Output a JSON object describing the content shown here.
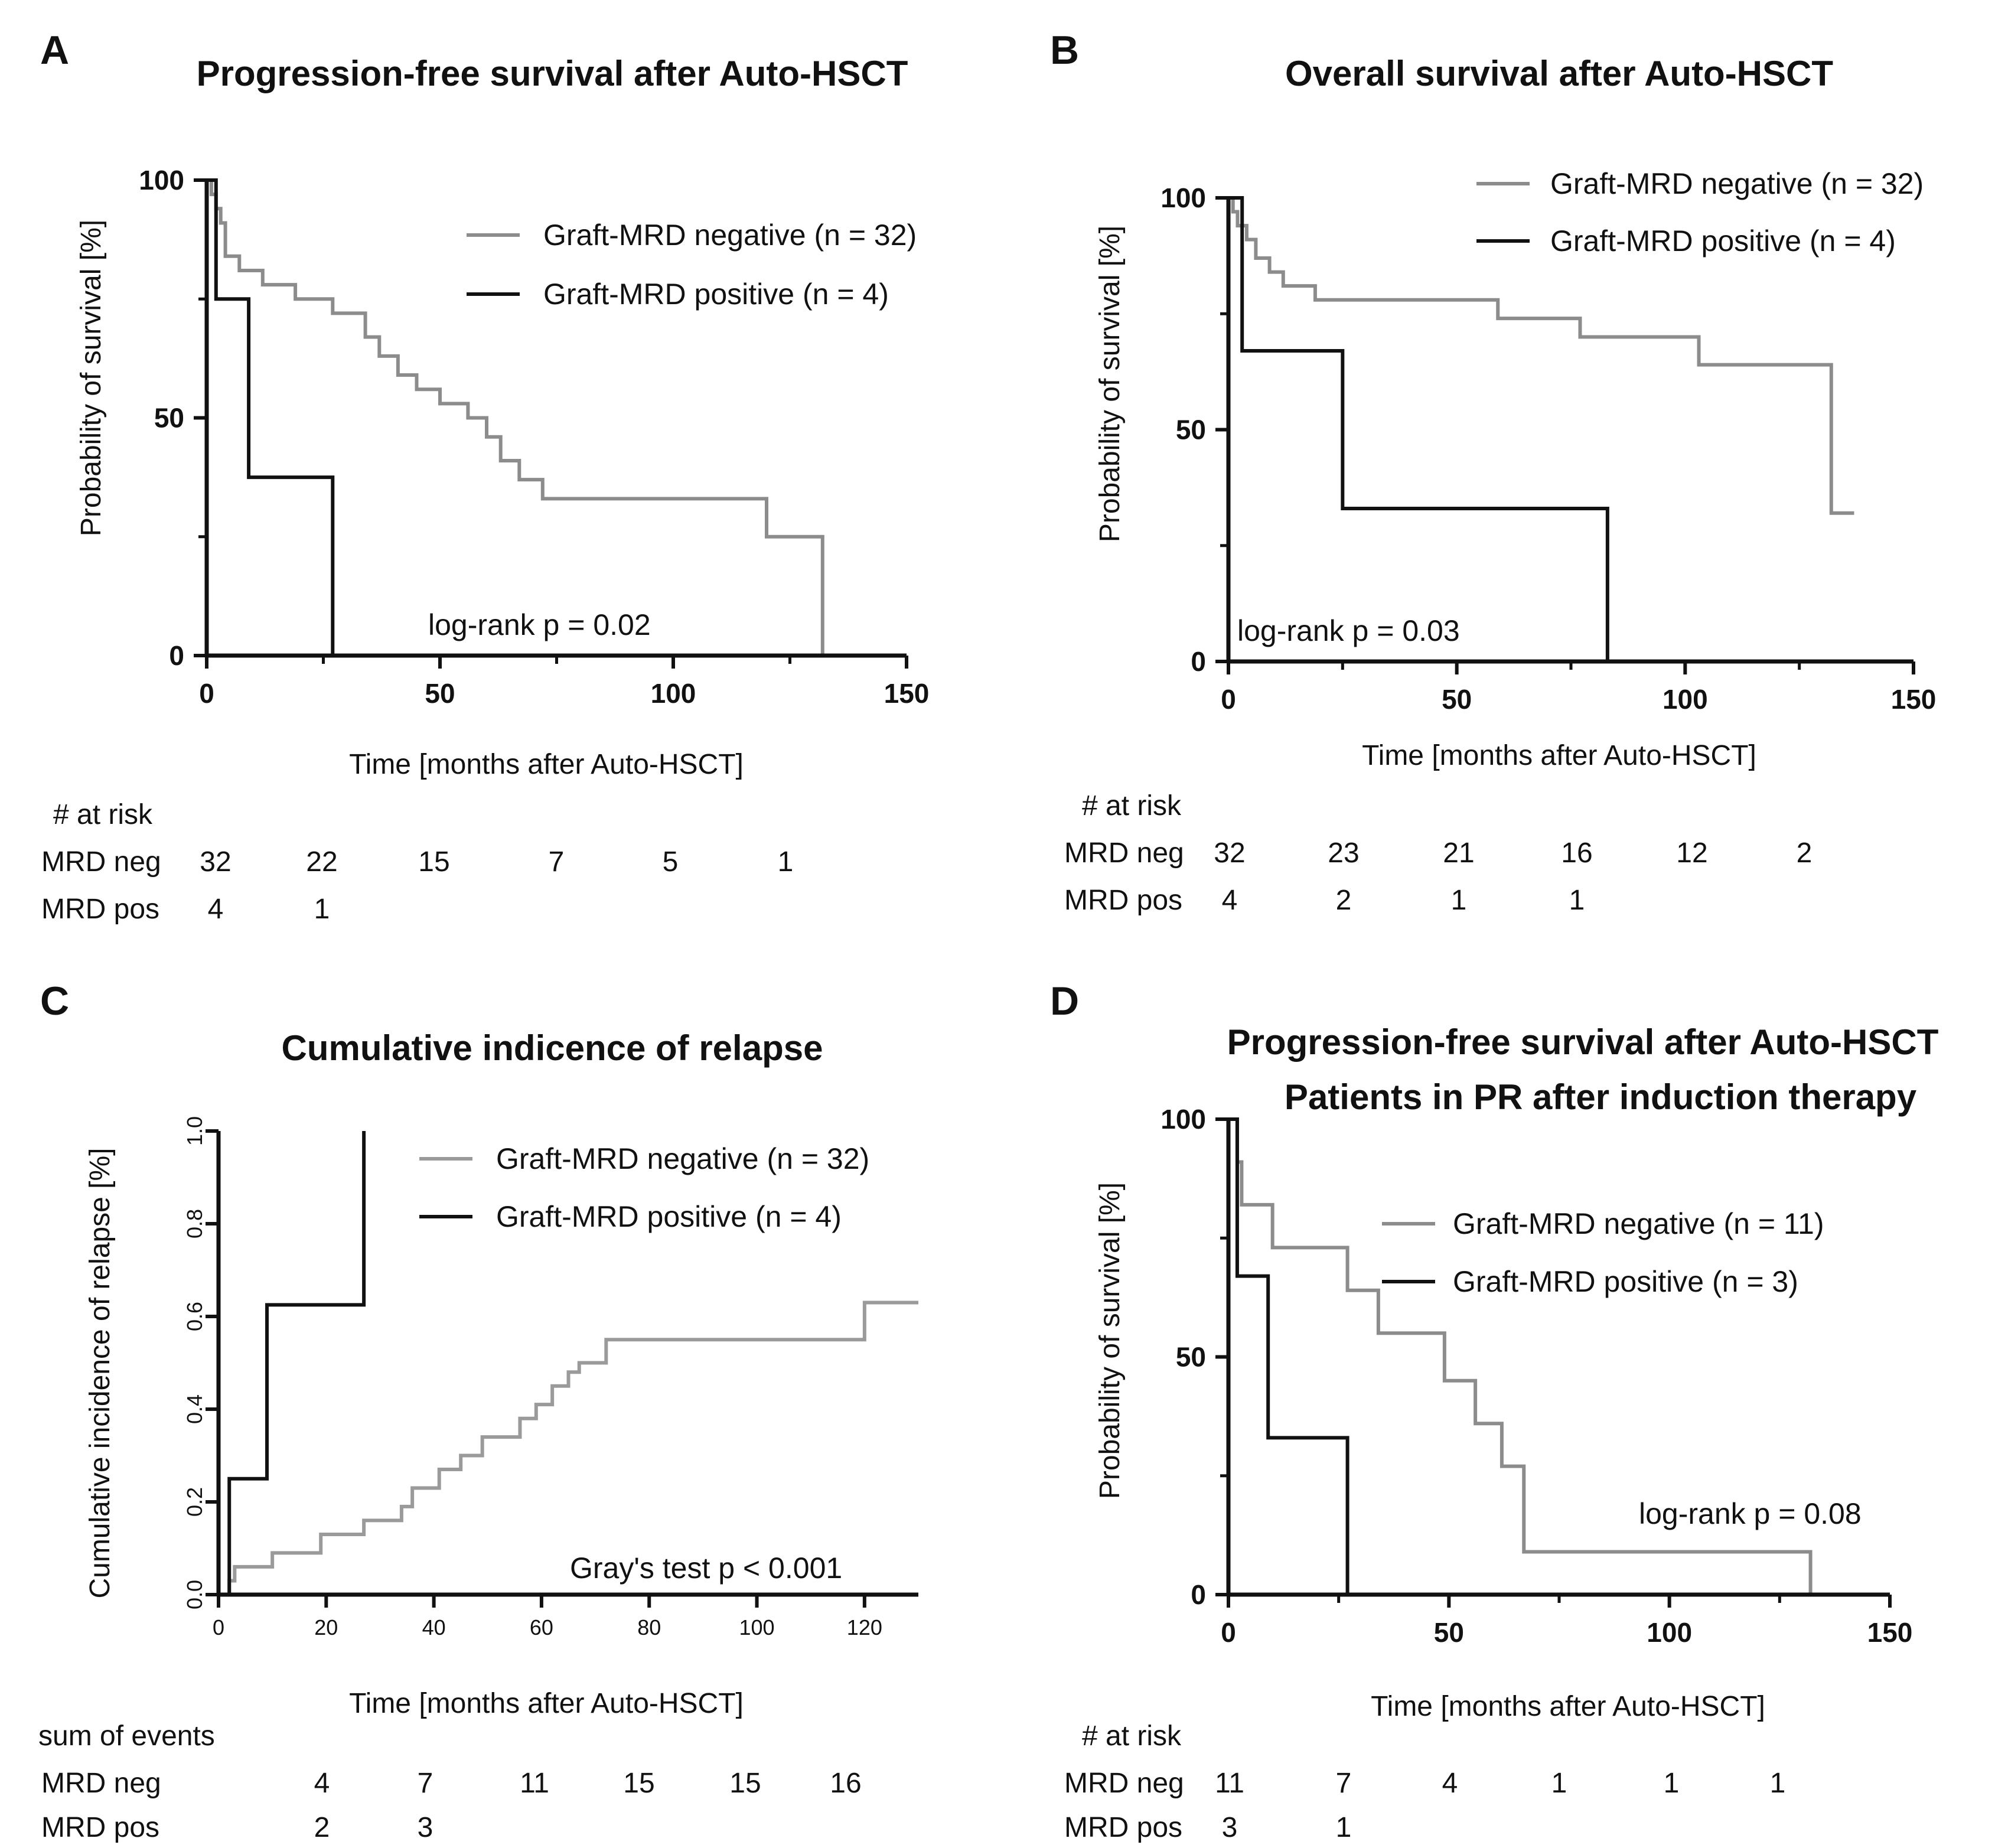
{
  "chart_data": [
    {
      "panel": "A",
      "type": "line",
      "subtype": "kaplan-meier",
      "title": "Progression-free survival after Auto-HSCT",
      "subtitle": "",
      "xlabel": "Time [months after Auto-HSCT]",
      "ylabel": "Probability of survival [%]",
      "xlim": [
        0,
        150
      ],
      "ylim": [
        0,
        100
      ],
      "xticks": [
        0,
        50,
        100,
        150
      ],
      "yticks": [
        0,
        50,
        100
      ],
      "xtick_labels": [
        "0",
        "50",
        "100",
        "150"
      ],
      "ytick_labels": [
        "0",
        "50",
        "100"
      ],
      "legend": [
        "Graft-MRD negative (n = 32)",
        "Graft-MRD positive (n = 4)"
      ],
      "stat": "log-rank p = 0.02",
      "series": [
        {
          "name": "Graft-MRD negative (n = 32)",
          "color": "#8c8c8c",
          "x": [
            0,
            1,
            2,
            3,
            4,
            7,
            12,
            19,
            27,
            34,
            37,
            41,
            45,
            50,
            56,
            60,
            63,
            67,
            72,
            120,
            132
          ],
          "y": [
            100,
            97,
            94,
            91,
            84,
            81,
            78,
            75,
            72,
            67,
            63,
            59,
            56,
            53,
            50,
            46,
            41,
            37,
            33,
            25,
            0
          ]
        },
        {
          "name": "Graft-MRD positive (n = 4)",
          "color": "#111111",
          "x": [
            0,
            2,
            9,
            27
          ],
          "y": [
            100,
            75,
            37.5,
            0
          ]
        }
      ],
      "risk_table": {
        "header": "# at risk",
        "rows": [
          {
            "label": "MRD neg",
            "values": [
              "32",
              "22",
              "15",
              "7",
              "5",
              "1"
            ]
          },
          {
            "label": "MRD pos",
            "values": [
              "4",
              "1"
            ]
          }
        ]
      }
    },
    {
      "panel": "B",
      "type": "line",
      "subtype": "kaplan-meier",
      "title": "Overall survival after Auto-HSCT",
      "subtitle": "",
      "xlabel": "Time [months after Auto-HSCT]",
      "ylabel": "Probability of survival [%]",
      "xlim": [
        0,
        150
      ],
      "ylim": [
        0,
        100
      ],
      "xticks": [
        0,
        50,
        100,
        150
      ],
      "yticks": [
        0,
        50,
        100
      ],
      "xtick_labels": [
        "0",
        "50",
        "100",
        "150"
      ],
      "ytick_labels": [
        "0",
        "50",
        "100"
      ],
      "legend": [
        "Graft-MRD negative (n = 32)",
        "Graft-MRD positive (n = 4)"
      ],
      "stat": "log-rank p = 0.03",
      "series": [
        {
          "name": "Graft-MRD negative (n = 32)",
          "color": "#8c8c8c",
          "x": [
            0,
            1,
            2,
            4,
            6,
            9,
            12,
            19,
            59,
            77,
            103,
            132,
            137
          ],
          "y": [
            100,
            97,
            94,
            91,
            87,
            84,
            81,
            78,
            74,
            70,
            64,
            32,
            32
          ]
        },
        {
          "name": "Graft-MRD positive (n = 4)",
          "color": "#111111",
          "x": [
            0,
            3,
            25,
            83
          ],
          "y": [
            100,
            67,
            33,
            0
          ]
        }
      ],
      "risk_table": {
        "header": "# at risk",
        "rows": [
          {
            "label": "MRD neg",
            "values": [
              "32",
              "23",
              "21",
              "16",
              "12",
              "2"
            ]
          },
          {
            "label": "MRD pos",
            "values": [
              "4",
              "2",
              "1",
              "1"
            ]
          }
        ]
      }
    },
    {
      "panel": "C",
      "type": "line",
      "subtype": "cumulative-incidence",
      "title": "Cumulative indicence of relapse",
      "subtitle": "",
      "xlabel": "Time [months after Auto-HSCT]",
      "ylabel": "Cumulative incidence of relapse [%]",
      "xlim": [
        0,
        130
      ],
      "ylim": [
        0,
        1
      ],
      "xticks": [
        0,
        20,
        40,
        60,
        80,
        100,
        120
      ],
      "yticks": [
        0,
        0.2,
        0.4,
        0.6,
        0.8,
        1
      ],
      "xtick_labels": [
        "0",
        "20",
        "40",
        "60",
        "80",
        "100",
        "120"
      ],
      "ytick_labels": [
        "0.0",
        "0.2",
        "0.4",
        "0.6",
        "0.8",
        "1.0"
      ],
      "legend": [
        "Graft-MRD negative (n = 32)",
        "Graft-MRD positive (n = 4)"
      ],
      "stat": "Gray's test p < 0.001",
      "series": [
        {
          "name": "Graft-MRD negative (n = 32)",
          "color": "#9a9a9a",
          "x": [
            0,
            2,
            3,
            10,
            19,
            27,
            34,
            36,
            41,
            45,
            49,
            56,
            59,
            62,
            65,
            67,
            72,
            120,
            130
          ],
          "y": [
            0,
            0.03,
            0.06,
            0.09,
            0.13,
            0.16,
            0.19,
            0.23,
            0.27,
            0.3,
            0.34,
            0.38,
            0.41,
            0.45,
            0.48,
            0.5,
            0.55,
            0.63,
            0.63
          ]
        },
        {
          "name": "Graft-MRD positive (n = 4)",
          "color": "#111111",
          "x": [
            0,
            2,
            9,
            27
          ],
          "y": [
            0,
            0.25,
            0.625,
            1.0
          ]
        }
      ],
      "risk_table": {
        "header": "sum of events",
        "rows": [
          {
            "label": "MRD neg",
            "values": [
              "4",
              "7",
              "11",
              "15",
              "15",
              "16"
            ]
          },
          {
            "label": "MRD pos",
            "values": [
              "2",
              "3"
            ]
          }
        ]
      }
    },
    {
      "panel": "D",
      "type": "line",
      "subtype": "kaplan-meier",
      "title": "Progression-free survival after Auto-HSCT",
      "subtitle": "Patients in PR after induction therapy",
      "xlabel": "Time [months after Auto-HSCT]",
      "ylabel": "Probability of survival [%]",
      "xlim": [
        0,
        150
      ],
      "ylim": [
        0,
        100
      ],
      "xticks": [
        0,
        50,
        100,
        150
      ],
      "yticks": [
        0,
        50,
        100
      ],
      "xtick_labels": [
        "0",
        "50",
        "100",
        "150"
      ],
      "ytick_labels": [
        "0",
        "50",
        "100"
      ],
      "legend": [
        "Graft-MRD negative (n = 11)",
        "Graft-MRD positive (n = 3)"
      ],
      "stat": "log-rank p = 0.08",
      "series": [
        {
          "name": "Graft-MRD negative (n = 11)",
          "color": "#8c8c8c",
          "x": [
            0,
            2,
            3,
            10,
            27,
            34,
            49,
            56,
            62,
            67,
            132
          ],
          "y": [
            100,
            91,
            82,
            73,
            64,
            55,
            45,
            36,
            27,
            9,
            0
          ]
        },
        {
          "name": "Graft-MRD positive (n = 3)",
          "color": "#111111",
          "x": [
            0,
            2,
            9,
            27
          ],
          "y": [
            100,
            67,
            33,
            0
          ]
        }
      ],
      "risk_table": {
        "header": "# at risk",
        "rows": [
          {
            "label": "MRD neg",
            "values": [
              "11",
              "7",
              "4",
              "1",
              "1",
              "1"
            ]
          },
          {
            "label": "MRD pos",
            "values": [
              "3",
              "1"
            ]
          }
        ]
      }
    }
  ]
}
